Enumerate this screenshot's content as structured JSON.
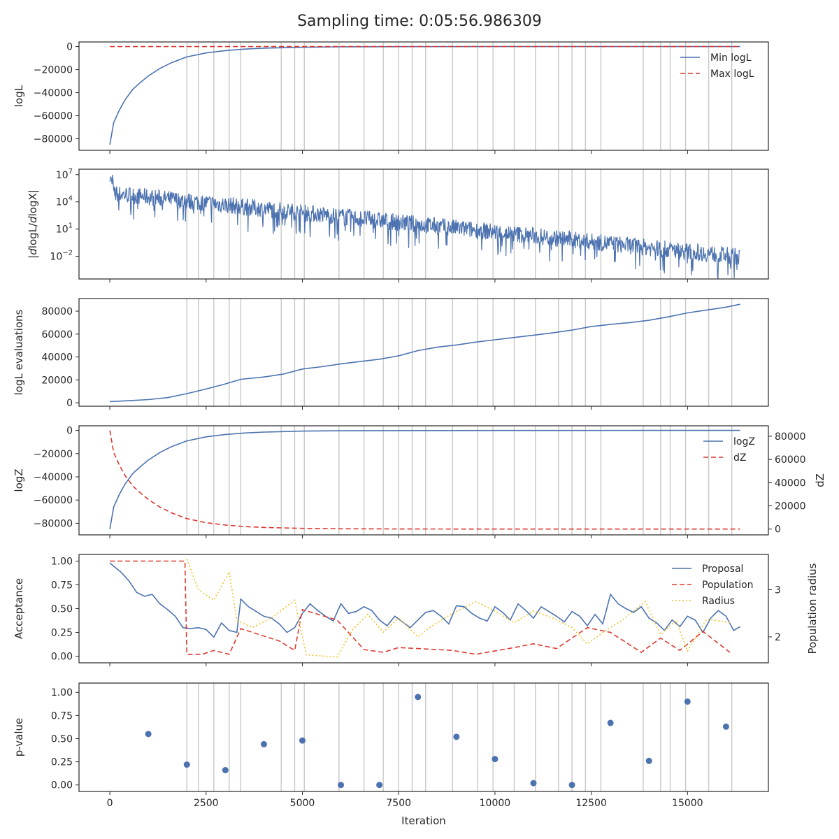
{
  "title": "Sampling time: 0:05:56.986309",
  "colors": {
    "blue": "#4c72b0",
    "red": "#dd3931",
    "gold": "#f2c12e",
    "vline": "#c8c8c8",
    "axis": "#262626"
  },
  "chart_data": [
    {
      "type": "line",
      "ylabel": "logL",
      "xlim": [
        -800,
        17100
      ],
      "ylim": [
        -90000,
        4000
      ],
      "yticks": [
        0,
        -20000,
        -40000,
        -60000,
        -80000
      ],
      "ytick_labels": [
        "0",
        "−20000",
        "−40000",
        "−60000",
        "−80000"
      ],
      "legend": "top-right",
      "grid": false,
      "series": [
        {
          "name": "Min logL",
          "style": "solid",
          "color": "blue",
          "x": [
            0,
            100,
            250,
            400,
            600,
            800,
            1000,
            1300,
            1600,
            2000,
            2500,
            3000,
            3500,
            4000,
            5000,
            6000,
            8000,
            10000,
            12000,
            14000,
            16364
          ],
          "y": [
            -85000,
            -66000,
            -55000,
            -46000,
            -37000,
            -31000,
            -25500,
            -19000,
            -14000,
            -9000,
            -5500,
            -3500,
            -2200,
            -1400,
            -600,
            -250,
            -80,
            -30,
            -10,
            -4,
            0
          ]
        },
        {
          "name": "Max logL",
          "style": "dashed",
          "color": "red",
          "x": [
            0,
            16364
          ],
          "y": [
            0,
            0
          ]
        }
      ]
    },
    {
      "type": "line",
      "ylabel": "|dlogL/dlogX|",
      "yscale": "log",
      "xlim": [
        -800,
        17100
      ],
      "ylim": [
        -4.5,
        7.6
      ],
      "ytick_exponents": [
        7,
        4,
        1,
        -2
      ],
      "ytick_labels": [
        "10",
        "10",
        "10",
        "10"
      ],
      "ytick_sup": [
        "7",
        "4",
        "1",
        "−2"
      ],
      "grid": false,
      "trend_log10": {
        "x": [
          0,
          16364
        ],
        "upper": [
          5.9,
          -1.1
        ],
        "lower": [
          4.0,
          -3.0
        ]
      }
    },
    {
      "type": "line",
      "ylabel": "logL evaluations",
      "xlim": [
        -800,
        17100
      ],
      "ylim": [
        -3000,
        91000
      ],
      "yticks": [
        0,
        20000,
        40000,
        60000,
        80000
      ],
      "ytick_labels": [
        "0",
        "20000",
        "40000",
        "60000",
        "80000"
      ],
      "grid": false,
      "series": [
        {
          "name": "",
          "style": "solid",
          "color": "blue",
          "x": [
            0,
            500,
            1000,
            1500,
            2000,
            2500,
            3000,
            3400,
            4000,
            4500,
            5000,
            5500,
            6000,
            6500,
            7000,
            7500,
            8000,
            8500,
            9000,
            9500,
            10000,
            10500,
            11000,
            11500,
            12000,
            12500,
            13000,
            13500,
            14000,
            14500,
            15000,
            15500,
            16000,
            16364
          ],
          "y": [
            1000,
            1800,
            2800,
            4500,
            8000,
            12000,
            16500,
            20500,
            22500,
            25000,
            29500,
            31500,
            34000,
            36000,
            38000,
            41000,
            45500,
            48500,
            50500,
            53000,
            55000,
            57000,
            59000,
            61000,
            63500,
            66500,
            68500,
            70000,
            72000,
            75000,
            78500,
            81000,
            83500,
            86000
          ]
        }
      ]
    },
    {
      "type": "line",
      "ylabel": "logZ",
      "ylabel_right": "dZ",
      "xlim": [
        -800,
        17100
      ],
      "ylim": [
        -90000,
        4000
      ],
      "ylim_right": [
        -5000,
        89000
      ],
      "yticks": [
        0,
        -20000,
        -40000,
        -60000,
        -80000
      ],
      "ytick_labels": [
        "0",
        "−20000",
        "−40000",
        "−60000",
        "−80000"
      ],
      "yticks_right": [
        80000,
        60000,
        40000,
        20000,
        0
      ],
      "ytick_labels_right": [
        "80000",
        "60000",
        "40000",
        "20000",
        "0"
      ],
      "legend": "top-right",
      "grid": false,
      "series": [
        {
          "name": "logZ",
          "style": "solid",
          "color": "blue",
          "axis": "left",
          "x": [
            0,
            100,
            250,
            400,
            600,
            800,
            1000,
            1300,
            1600,
            2000,
            2500,
            3000,
            3500,
            4000,
            5000,
            6000,
            8000,
            10000,
            12000,
            14000,
            16364
          ],
          "y": [
            -85000,
            -66000,
            -55000,
            -46000,
            -37000,
            -31000,
            -25500,
            -19000,
            -14000,
            -9000,
            -5500,
            -3500,
            -2200,
            -1400,
            -600,
            -250,
            -80,
            -30,
            -10,
            -4,
            0
          ]
        },
        {
          "name": "dZ",
          "style": "dashed",
          "color": "red",
          "axis": "right",
          "x": [
            0,
            100,
            250,
            400,
            600,
            800,
            1000,
            1300,
            1600,
            2000,
            2500,
            3000,
            3500,
            4000,
            5000,
            6000,
            8000,
            10000,
            12000,
            14000,
            16364
          ],
          "y": [
            85000,
            66000,
            55000,
            46000,
            37000,
            31000,
            25500,
            19000,
            14000,
            9000,
            5500,
            3500,
            2200,
            1400,
            600,
            250,
            80,
            30,
            10,
            4,
            0
          ]
        }
      ]
    },
    {
      "type": "line",
      "ylabel": "Acceptance",
      "ylabel_right": "Population radius",
      "xlim": [
        -800,
        17100
      ],
      "ylim": [
        -0.07,
        1.07
      ],
      "ylim_right": [
        1.45,
        3.75
      ],
      "yticks": [
        1.0,
        0.75,
        0.5,
        0.25,
        0.0
      ],
      "ytick_labels": [
        "1.00",
        "0.75",
        "0.50",
        "0.25",
        "0.00"
      ],
      "yticks_right": [
        3,
        2
      ],
      "ytick_labels_right": [
        "3",
        "2"
      ],
      "legend": "top-right",
      "grid": false,
      "series": [
        {
          "name": "Proposal",
          "style": "solid",
          "color": "blue",
          "axis": "left",
          "x": [
            0,
            150,
            300,
            500,
            700,
            900,
            1100,
            1300,
            1500,
            1700,
            1900,
            2100,
            2300,
            2500,
            2700,
            2900,
            3100,
            3300,
            3400,
            3600,
            3800,
            4000,
            4200,
            4400,
            4600,
            4800,
            5000,
            5200,
            5400,
            5600,
            5800,
            6000,
            6200,
            6400,
            6600,
            6800,
            7000,
            7200,
            7400,
            7600,
            7800,
            8000,
            8200,
            8400,
            8600,
            8800,
            9000,
            9200,
            9400,
            9600,
            9800,
            10000,
            10200,
            10400,
            10600,
            10800,
            11000,
            11200,
            11400,
            11600,
            11800,
            12000,
            12200,
            12400,
            12600,
            12800,
            13000,
            13200,
            13400,
            13600,
            13800,
            14000,
            14200,
            14400,
            14600,
            14800,
            15000,
            15200,
            15400,
            15600,
            15800,
            16000,
            16200,
            16364
          ],
          "y": [
            0.98,
            0.93,
            0.88,
            0.79,
            0.67,
            0.63,
            0.65,
            0.55,
            0.49,
            0.42,
            0.3,
            0.29,
            0.3,
            0.28,
            0.2,
            0.35,
            0.27,
            0.25,
            0.6,
            0.52,
            0.47,
            0.42,
            0.4,
            0.34,
            0.25,
            0.3,
            0.45,
            0.55,
            0.48,
            0.42,
            0.37,
            0.55,
            0.45,
            0.47,
            0.52,
            0.48,
            0.38,
            0.32,
            0.42,
            0.36,
            0.3,
            0.38,
            0.46,
            0.48,
            0.42,
            0.34,
            0.53,
            0.52,
            0.45,
            0.4,
            0.37,
            0.52,
            0.46,
            0.38,
            0.55,
            0.48,
            0.4,
            0.52,
            0.47,
            0.42,
            0.36,
            0.47,
            0.42,
            0.32,
            0.44,
            0.34,
            0.65,
            0.55,
            0.5,
            0.46,
            0.52,
            0.4,
            0.35,
            0.27,
            0.38,
            0.31,
            0.42,
            0.38,
            0.25,
            0.4,
            0.48,
            0.42,
            0.27,
            0.31
          ]
        },
        {
          "name": "Population",
          "style": "dashed",
          "color": "red",
          "axis": "left",
          "x": [
            0,
            1950,
            2000,
            2400,
            2700,
            3100,
            3400,
            4400,
            4800,
            5000,
            5900,
            6600,
            7100,
            7500,
            8000,
            8900,
            9500,
            10500,
            11000,
            11600,
            12400,
            13000,
            13800,
            14300,
            14800,
            15400,
            16100
          ],
          "y": [
            1.0,
            1.0,
            0.02,
            0.02,
            0.06,
            0.02,
            0.29,
            0.16,
            0.06,
            0.49,
            0.38,
            0.07,
            0.04,
            0.09,
            0.08,
            0.06,
            0.02,
            0.09,
            0.13,
            0.08,
            0.3,
            0.25,
            0.04,
            0.19,
            0.06,
            0.26,
            0.04
          ]
        },
        {
          "name": "Radius",
          "style": "dotted",
          "color": "gold",
          "axis": "right",
          "x": [
            2000,
            2300,
            2700,
            3100,
            3300,
            3700,
            4200,
            4800,
            5100,
            5900,
            6300,
            6700,
            7100,
            7500,
            8000,
            8300,
            8800,
            9200,
            9500,
            10000,
            10500,
            11000,
            11500,
            12000,
            12400,
            12900,
            13300,
            13900,
            14300,
            14700,
            15000,
            15500,
            16100
          ],
          "y": [
            3.65,
            3.0,
            2.78,
            3.38,
            2.35,
            2.2,
            2.4,
            2.78,
            1.62,
            1.57,
            2.15,
            2.48,
            2.1,
            2.4,
            2.0,
            2.2,
            2.45,
            2.62,
            2.75,
            2.55,
            2.3,
            2.55,
            2.4,
            2.2,
            1.85,
            2.15,
            2.35,
            2.75,
            2.05,
            2.35,
            1.7,
            2.38,
            2.3
          ]
        }
      ]
    },
    {
      "type": "scatter",
      "xlabel": "Iteration",
      "ylabel": "p-value",
      "xlim": [
        -800,
        17100
      ],
      "ylim": [
        -0.07,
        1.1
      ],
      "yticks": [
        1.0,
        0.75,
        0.5,
        0.25,
        0.0
      ],
      "ytick_labels": [
        "1.00",
        "0.75",
        "0.50",
        "0.25",
        "0.00"
      ],
      "xticks": [
        0,
        2500,
        5000,
        7500,
        10000,
        12500,
        15000
      ],
      "xtick_labels": [
        "0",
        "2500",
        "5000",
        "7500",
        "10000",
        "12500",
        "15000"
      ],
      "grid": false,
      "series": [
        {
          "name": "",
          "color": "blue",
          "x": [
            1000,
            2000,
            3000,
            4000,
            5000,
            6000,
            7000,
            8000,
            9000,
            10000,
            11000,
            12000,
            13000,
            14000,
            15000,
            16000
          ],
          "y": [
            0.55,
            0.22,
            0.16,
            0.44,
            0.48,
            0.0,
            0.0,
            0.95,
            0.52,
            0.28,
            0.02,
            0.0,
            0.67,
            0.26,
            0.9,
            0.63
          ]
        }
      ]
    }
  ],
  "reset_lines_x": [
    2000,
    2300,
    2700,
    3100,
    3400,
    4450,
    4800,
    5050,
    5950,
    6600,
    7100,
    7500,
    7850,
    8200,
    8900,
    9550,
    9950,
    10500,
    11050,
    11650,
    12000,
    12350,
    12750,
    13850,
    14300,
    14550,
    14950,
    15550,
    16150
  ]
}
